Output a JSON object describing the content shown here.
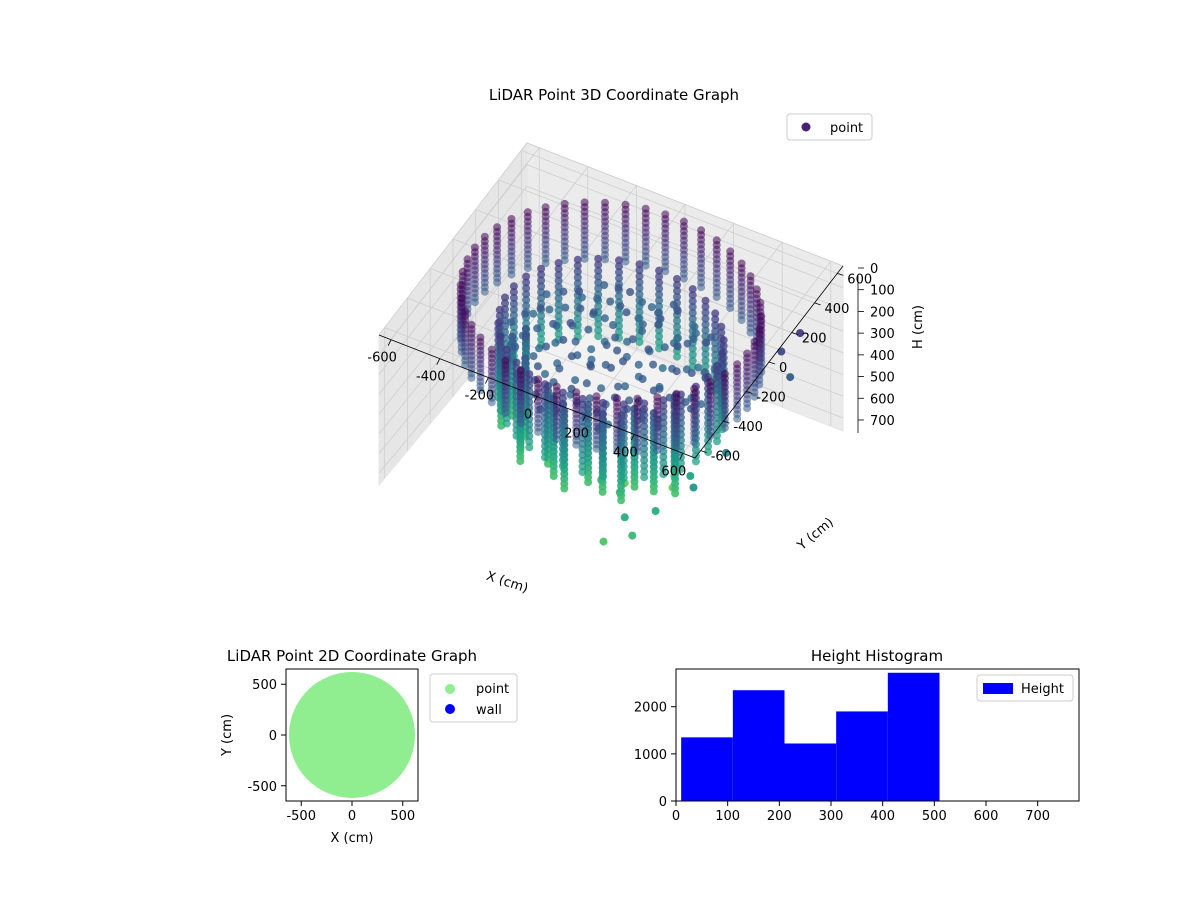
{
  "chart_data": [
    {
      "type": "scatter",
      "title": "LiDAR Point 3D Coordinate Graph",
      "xlabel": "X (cm)",
      "ylabel": "Y (cm)",
      "zlabel": "H (cm)",
      "xlim": [
        -650,
        650
      ],
      "ylim": [
        -650,
        650
      ],
      "zlim": [
        0,
        760
      ],
      "zaxis_inverted": true,
      "xticks": [
        -600,
        -400,
        -200,
        0,
        200,
        400,
        600
      ],
      "yticks": [
        -600,
        -400,
        -200,
        0,
        200,
        400,
        600
      ],
      "zticks": [
        0,
        100,
        200,
        300,
        400,
        500,
        600,
        700
      ],
      "grid": true,
      "colormap": "viridis",
      "legend": {
        "position": "top-right",
        "entries": [
          {
            "label": "point",
            "color": "#482173"
          }
        ]
      },
      "structure": {
        "outer_ring_radius": 560,
        "outer_ring_height": [
          0,
          280
        ],
        "inner_ring_radius": 420,
        "inner_ring_height": [
          150,
          520
        ],
        "hanging_column_height": [
          250,
          640
        ],
        "stray_points": [
          {
            "x": 300,
            "y": -520,
            "h": 560
          },
          {
            "x": 350,
            "y": -560,
            "h": 600
          },
          {
            "x": 250,
            "y": -600,
            "h": 650
          },
          {
            "x": 480,
            "y": -300,
            "h": 480
          },
          {
            "x": 420,
            "y": -200,
            "h": 520
          },
          {
            "x": 520,
            "y": -100,
            "h": 430
          },
          {
            "x": 380,
            "y": -420,
            "h": 560
          },
          {
            "x": 200,
            "y": -350,
            "h": 600
          },
          {
            "x": 100,
            "y": -300,
            "h": 620
          },
          {
            "x": 560,
            "y": 300,
            "h": 200
          },
          {
            "x": 600,
            "y": 380,
            "h": 150
          },
          {
            "x": 620,
            "y": 250,
            "h": 260
          },
          {
            "x": 300,
            "y": -100,
            "h": 700
          },
          {
            "x": 150,
            "y": -200,
            "h": 680
          }
        ]
      }
    },
    {
      "type": "scatter",
      "title": "LiDAR Point 2D Coordinate Graph",
      "xlabel": "X (cm)",
      "ylabel": "Y (cm)",
      "xlim": [
        -650,
        650
      ],
      "ylim": [
        -650,
        650
      ],
      "xticks": [
        -500,
        0,
        500
      ],
      "yticks": [
        -500,
        0,
        500
      ],
      "disc_radius": 620,
      "legend": {
        "position": "outside-right",
        "entries": [
          {
            "label": "point",
            "color": "#90ee90"
          },
          {
            "label": "wall",
            "color": "#0000ff"
          }
        ]
      }
    },
    {
      "type": "bar",
      "title": "Height Histogram",
      "xlim": [
        0,
        780
      ],
      "ylim": [
        0,
        2800
      ],
      "xticks": [
        0,
        100,
        200,
        300,
        400,
        500,
        600,
        700
      ],
      "yticks": [
        0,
        1000,
        2000
      ],
      "color": "#0000ff",
      "legend": {
        "position": "top-right",
        "entries": [
          {
            "label": "Height",
            "color": "#0000ff"
          }
        ]
      },
      "bins": [
        {
          "start": 10,
          "end": 110,
          "count": 1350
        },
        {
          "start": 110,
          "end": 210,
          "count": 2350
        },
        {
          "start": 210,
          "end": 310,
          "count": 1220
        },
        {
          "start": 310,
          "end": 410,
          "count": 1900
        },
        {
          "start": 410,
          "end": 510,
          "count": 2720
        }
      ]
    }
  ]
}
